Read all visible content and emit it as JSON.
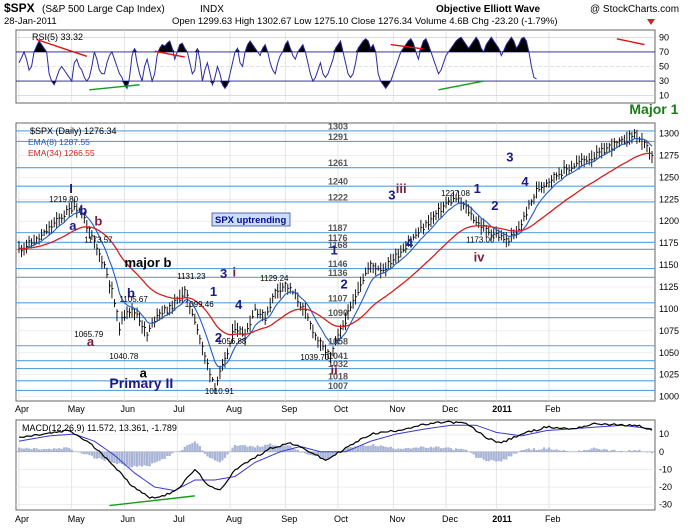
{
  "header": {
    "symbol": "$SPX",
    "name": "(S&P 500 Large Cap Index)",
    "exchange": "INDX",
    "site": "Objective Elliott Wave",
    "copyright": "@ StockCharts.com",
    "date": "28-Jan-2011",
    "quote": "Open 1299.63  High 1302.67  Low 1275.10  Close 1276.34  Volume 4.6B  Chg -23.20 (-1.79%)"
  },
  "months": [
    "Apr",
    "May",
    "Jun",
    "Jul",
    "Aug",
    "Sep",
    "Oct",
    "Nov",
    "Dec",
    "2011",
    "Feb"
  ],
  "rsi": {
    "label": "RSI(5) 33.32",
    "ticks": [
      90,
      70,
      50,
      30,
      10
    ],
    "ylim": [
      0,
      100
    ],
    "values": [
      55,
      62,
      70,
      60,
      45,
      50,
      70,
      78,
      85,
      80,
      75,
      70,
      40,
      30,
      25,
      35,
      45,
      50,
      45,
      40,
      35,
      30,
      55,
      60,
      50,
      45,
      35,
      30,
      35,
      50,
      70,
      60,
      45,
      40,
      40,
      55,
      65,
      70,
      60,
      50,
      40,
      35,
      25,
      20,
      35,
      65,
      75,
      55,
      40,
      30,
      50,
      60,
      45,
      30,
      40,
      65,
      75,
      80,
      78,
      82,
      85,
      75,
      60,
      70,
      80,
      82,
      75,
      70,
      55,
      40,
      45,
      75,
      60,
      30,
      45,
      55,
      40,
      25,
      35,
      50,
      40,
      25,
      20,
      25,
      40,
      55,
      70,
      75,
      55,
      50,
      70,
      80,
      85,
      80,
      75,
      70,
      65,
      75,
      80,
      70,
      55,
      45,
      40,
      55,
      65,
      70,
      80,
      85,
      75,
      65,
      60,
      70,
      75,
      80,
      70,
      55,
      40,
      30,
      35,
      45,
      55,
      40,
      35,
      40,
      50,
      60,
      75,
      80,
      85,
      70,
      55,
      40,
      35,
      40,
      55,
      75,
      80,
      85,
      88,
      85,
      75,
      80,
      70,
      40,
      30,
      25,
      20,
      25,
      30,
      40,
      50,
      60,
      70,
      75,
      80,
      85,
      88,
      82,
      70,
      60,
      75,
      85,
      88,
      80,
      70,
      60,
      50,
      40,
      45,
      55,
      65,
      70,
      75,
      80,
      85,
      88,
      90,
      85,
      80,
      75,
      80,
      85,
      90,
      85,
      75,
      70,
      80,
      85,
      90,
      85,
      80,
      75,
      65,
      72,
      80,
      85,
      90,
      85,
      75,
      80,
      88,
      90,
      85,
      70,
      50,
      35,
      33
    ]
  },
  "price": {
    "label": "$SPX (Daily) 1276.34",
    "ema8_label": "EMA(8) 1287.55",
    "ema34_label": "EMA(34) 1266.55",
    "ticks": [
      1300,
      1275,
      1250,
      1225,
      1200,
      1175,
      1150,
      1125,
      1100,
      1075,
      1050,
      1025,
      1000
    ],
    "ylim": [
      995,
      1312
    ],
    "levels": [
      1303,
      1291,
      1261,
      1240,
      1222,
      1187,
      1176,
      1168,
      1146,
      1136,
      1107,
      1090,
      1058,
      1041,
      1032,
      1018,
      1007
    ],
    "callout": "SPX uptrending",
    "anchors": [
      [
        0,
        1168
      ],
      [
        8,
        1180
      ],
      [
        15,
        1200
      ],
      [
        22,
        1218
      ],
      [
        25,
        1210
      ],
      [
        28,
        1188
      ],
      [
        31,
        1168
      ],
      [
        34,
        1150
      ],
      [
        37,
        1120
      ],
      [
        40,
        1080
      ],
      [
        43,
        1100
      ],
      [
        47,
        1095
      ],
      [
        51,
        1070
      ],
      [
        55,
        1095
      ],
      [
        60,
        1100
      ],
      [
        66,
        1120
      ],
      [
        70,
        1088
      ],
      [
        74,
        1045
      ],
      [
        78,
        1012
      ],
      [
        82,
        1040
      ],
      [
        86,
        1080
      ],
      [
        90,
        1070
      ],
      [
        94,
        1100
      ],
      [
        98,
        1090
      ],
      [
        102,
        1120
      ],
      [
        106,
        1128
      ],
      [
        110,
        1115
      ],
      [
        114,
        1095
      ],
      [
        118,
        1070
      ],
      [
        121,
        1055
      ],
      [
        124,
        1046
      ],
      [
        128,
        1075
      ],
      [
        132,
        1100
      ],
      [
        136,
        1130
      ],
      [
        140,
        1150
      ],
      [
        145,
        1145
      ],
      [
        150,
        1160
      ],
      [
        155,
        1175
      ],
      [
        160,
        1190
      ],
      [
        165,
        1205
      ],
      [
        170,
        1220
      ],
      [
        174,
        1226
      ],
      [
        178,
        1215
      ],
      [
        182,
        1200
      ],
      [
        186,
        1190
      ],
      [
        190,
        1185
      ],
      [
        194,
        1178
      ],
      [
        198,
        1185
      ],
      [
        202,
        1210
      ],
      [
        206,
        1235
      ],
      [
        210,
        1245
      ],
      [
        215,
        1255
      ],
      [
        220,
        1262
      ],
      [
        225,
        1270
      ],
      [
        230,
        1275
      ],
      [
        235,
        1285
      ],
      [
        240,
        1290
      ],
      [
        245,
        1300
      ],
      [
        248,
        1290
      ],
      [
        252,
        1276
      ]
    ],
    "annotations": [
      {
        "t": "I",
        "c": "#1a1a8c",
        "s": 13
      },
      {
        "t": "a",
        "c": "#1a1a8c",
        "s": 13
      },
      {
        "t": "b",
        "c": "#1a1a8c",
        "s": 13
      },
      {
        "t": "b",
        "c": "#7a1f3d",
        "s": 13
      },
      {
        "t": "a",
        "c": "#7a1f3d",
        "s": 13
      },
      {
        "t": "b",
        "c": "#1a1a8c",
        "s": 13
      },
      {
        "t": "major b",
        "c": "#000000",
        "s": 13
      },
      {
        "t": "a",
        "c": "#000000",
        "s": 13
      },
      {
        "t": "Primary II",
        "c": "#1a1a8c",
        "s": 14
      },
      {
        "t": "1",
        "c": "#1a1a8c",
        "s": 13
      },
      {
        "t": "2",
        "c": "#1a1a8c",
        "s": 13
      },
      {
        "t": "3",
        "c": "#1a1a8c",
        "s": 13
      },
      {
        "t": "i",
        "c": "#7a1f3d",
        "s": 13
      },
      {
        "t": "4",
        "c": "#1a1a8c",
        "s": 13
      },
      {
        "t": "ii",
        "c": "#7a1f3d",
        "s": 13
      },
      {
        "t": "1",
        "c": "#1a1a8c",
        "s": 13
      },
      {
        "t": "2",
        "c": "#1a1a8c",
        "s": 13
      },
      {
        "t": "3",
        "c": "#1a1a8c",
        "s": 13
      },
      {
        "t": "iii",
        "c": "#7a1f3d",
        "s": 13
      },
      {
        "t": "4",
        "c": "#1a1a8c",
        "s": 13
      },
      {
        "t": "iv",
        "c": "#7a1f3d",
        "s": 13
      },
      {
        "t": "1",
        "c": "#1a1a8c",
        "s": 13
      },
      {
        "t": "2",
        "c": "#1a1a8c",
        "s": 13
      },
      {
        "t": "3",
        "c": "#1a1a8c",
        "s": 13
      },
      {
        "t": "4",
        "c": "#1a1a8c",
        "s": 13
      },
      {
        "t": "Major 1",
        "c": "#1a7a1a",
        "s": 14
      }
    ],
    "value_labels": [
      "1219.80",
      "1173.57",
      "1105.67",
      "1065.79",
      "1040.78",
      "1131.23",
      "1099.46",
      "1056.88",
      "1010.91",
      "1129.24",
      "1039.70",
      "1227.08",
      "1173.00"
    ]
  },
  "macd": {
    "label": "MACD(12,26,9) 11.572, 13.361, -1.789",
    "ticks": [
      10,
      0,
      -10,
      -20,
      -30
    ],
    "ylim": [
      -33,
      18
    ],
    "macd_anchors": [
      [
        0,
        8
      ],
      [
        10,
        10
      ],
      [
        20,
        12
      ],
      [
        28,
        5
      ],
      [
        36,
        -5
      ],
      [
        44,
        -18
      ],
      [
        52,
        -26
      ],
      [
        58,
        -25
      ],
      [
        64,
        -20
      ],
      [
        70,
        -10
      ],
      [
        76,
        -20
      ],
      [
        80,
        -22
      ],
      [
        86,
        -10
      ],
      [
        92,
        -5
      ],
      [
        100,
        2
      ],
      [
        108,
        5
      ],
      [
        116,
        0
      ],
      [
        122,
        -5
      ],
      [
        130,
        2
      ],
      [
        140,
        10
      ],
      [
        150,
        12
      ],
      [
        160,
        15
      ],
      [
        170,
        17
      ],
      [
        178,
        16
      ],
      [
        186,
        8
      ],
      [
        192,
        5
      ],
      [
        200,
        10
      ],
      [
        210,
        14
      ],
      [
        220,
        13
      ],
      [
        230,
        16
      ],
      [
        240,
        15
      ],
      [
        246,
        15
      ],
      [
        252,
        12
      ]
    ],
    "signal_anchors": [
      [
        0,
        6
      ],
      [
        12,
        9
      ],
      [
        22,
        10
      ],
      [
        30,
        6
      ],
      [
        38,
        -2
      ],
      [
        46,
        -12
      ],
      [
        54,
        -20
      ],
      [
        62,
        -22
      ],
      [
        70,
        -16
      ],
      [
        78,
        -16
      ],
      [
        86,
        -14
      ],
      [
        94,
        -6
      ],
      [
        104,
        0
      ],
      [
        112,
        3
      ],
      [
        120,
        0
      ],
      [
        130,
        0
      ],
      [
        140,
        6
      ],
      [
        150,
        10
      ],
      [
        162,
        13
      ],
      [
        172,
        15
      ],
      [
        182,
        15
      ],
      [
        190,
        11
      ],
      [
        200,
        9
      ],
      [
        210,
        12
      ],
      [
        220,
        13
      ],
      [
        230,
        14
      ],
      [
        240,
        15
      ],
      [
        252,
        13
      ]
    ]
  },
  "colors": {
    "price_bar": "#000000",
    "ema8": "#1f5bc7",
    "ema34": "#d42020",
    "rsi_line": "#000000",
    "level_line": "#5aa0dc",
    "macd_hist": "#a8b4d6",
    "divergence_red": "#e01010",
    "divergence_green": "#1a9a1a",
    "callout_bg": "#c8dff7",
    "callout_text": "#0a0a8c"
  }
}
